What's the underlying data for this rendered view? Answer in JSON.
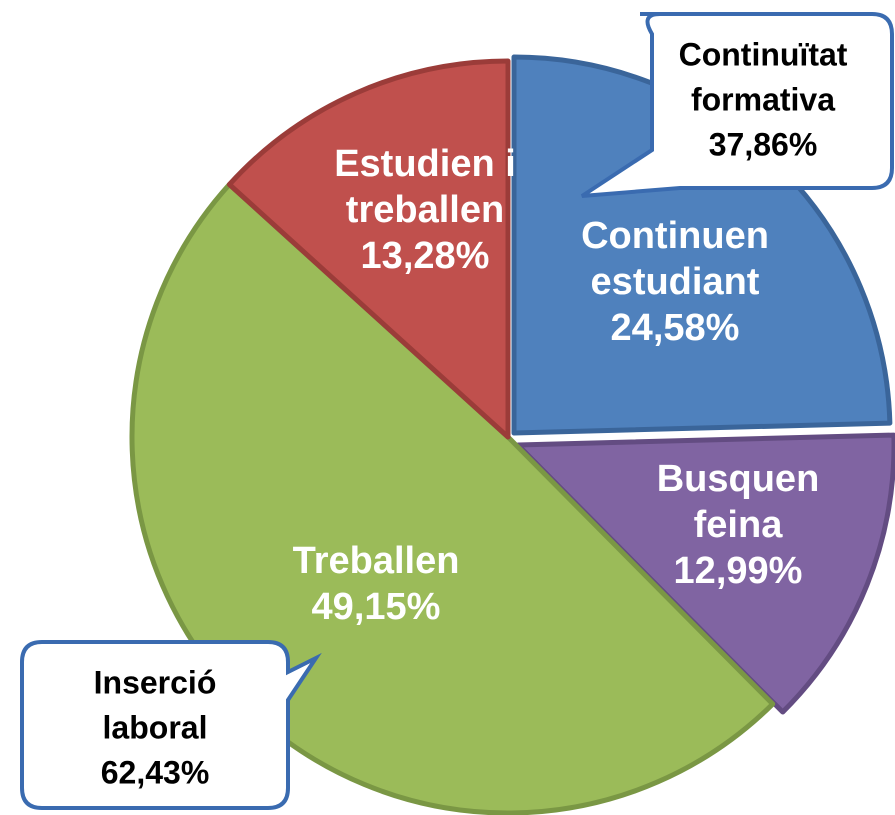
{
  "chart_data": {
    "type": "pie",
    "categories": [
      "Continuen estudiant",
      "Busquen feina",
      "Treballen",
      "Estudien i treballen"
    ],
    "values": [
      24.58,
      12.99,
      49.15,
      13.28
    ],
    "value_labels": [
      "24,58%",
      "12,99%",
      "49,15%",
      "13,28%"
    ],
    "colors": [
      "#4f81bd",
      "#8064a2",
      "#9bbb59",
      "#c0504d"
    ],
    "annotations": [
      {
        "text": "Continuïtat formativa",
        "label": "37,86%"
      },
      {
        "text": "Inserció laboral",
        "label": "62,43%"
      }
    ]
  }
}
